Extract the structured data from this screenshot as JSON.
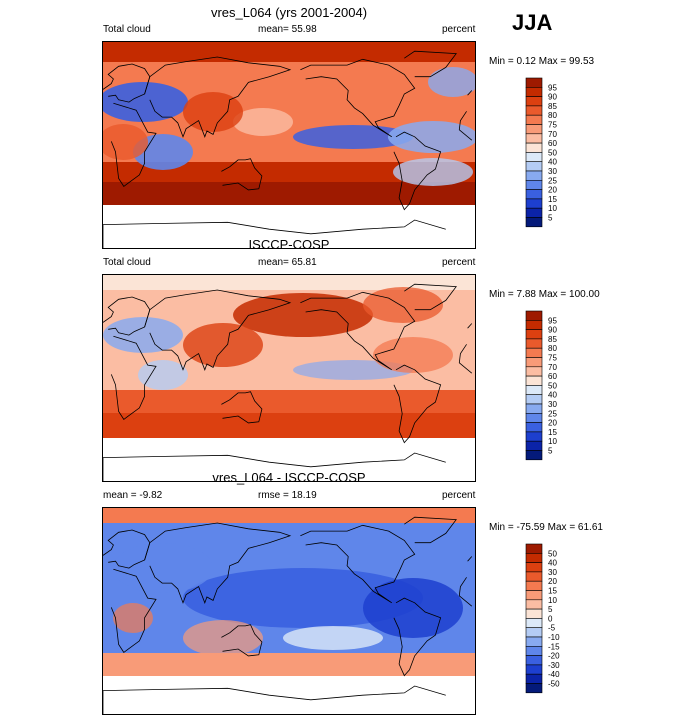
{
  "season": "JJA",
  "chart_data": [
    {
      "type": "heatmap",
      "title": "vres_L064 (yrs 2001-2004)",
      "left_label": "Total cloud",
      "center_label": "mean=  55.98",
      "right_label": "percent",
      "minmax": "Min =   0.12 Max =  99.53",
      "colorbar_levels": [
        95,
        90,
        85,
        80,
        75,
        70,
        60,
        50,
        40,
        30,
        25,
        20,
        15,
        10,
        5
      ],
      "colorbar_colors": [
        "#9e1a00",
        "#c42b00",
        "#dc4010",
        "#ea5a2c",
        "#f47a50",
        "#f89b78",
        "#fbbda3",
        "#fbe4d6",
        "#dce9f8",
        "#b4ccf4",
        "#88aaf0",
        "#5f86ea",
        "#3a60e0",
        "#1d3fcf",
        "#0b23a8",
        "#041a7a"
      ]
    },
    {
      "type": "heatmap",
      "title": "ISCCP-COSP",
      "left_label": "Total cloud",
      "center_label": "mean=  65.81",
      "right_label": "percent",
      "minmax": "Min =   7.88 Max = 100.00",
      "colorbar_levels": [
        95,
        90,
        85,
        80,
        75,
        70,
        60,
        50,
        40,
        30,
        25,
        20,
        15,
        10,
        5
      ],
      "colorbar_colors": [
        "#9e1a00",
        "#c42b00",
        "#dc4010",
        "#ea5a2c",
        "#f47a50",
        "#f89b78",
        "#fbbda3",
        "#fbe4d6",
        "#dce9f8",
        "#b4ccf4",
        "#88aaf0",
        "#5f86ea",
        "#3a60e0",
        "#1d3fcf",
        "#0b23a8",
        "#041a7a"
      ]
    },
    {
      "type": "heatmap",
      "title": "vres_L064 - ISCCP-COSP",
      "left_label": "mean =  -9.82",
      "center_label": "rmse =  18.19",
      "right_label": "percent",
      "minmax": "Min = -75.59 Max =  61.61",
      "colorbar_levels": [
        50,
        40,
        30,
        20,
        15,
        10,
        5,
        0,
        -5,
        -10,
        -15,
        -20,
        -30,
        -40,
        -50
      ],
      "colorbar_colors": [
        "#9e1a00",
        "#c42b00",
        "#dc4010",
        "#ea5a2c",
        "#f47a50",
        "#f89b78",
        "#fbbda3",
        "#fbe4d6",
        "#dce9f8",
        "#b4ccf4",
        "#88aaf0",
        "#5f86ea",
        "#3a60e0",
        "#1d3fcf",
        "#0b23a8",
        "#041a7a"
      ]
    }
  ]
}
